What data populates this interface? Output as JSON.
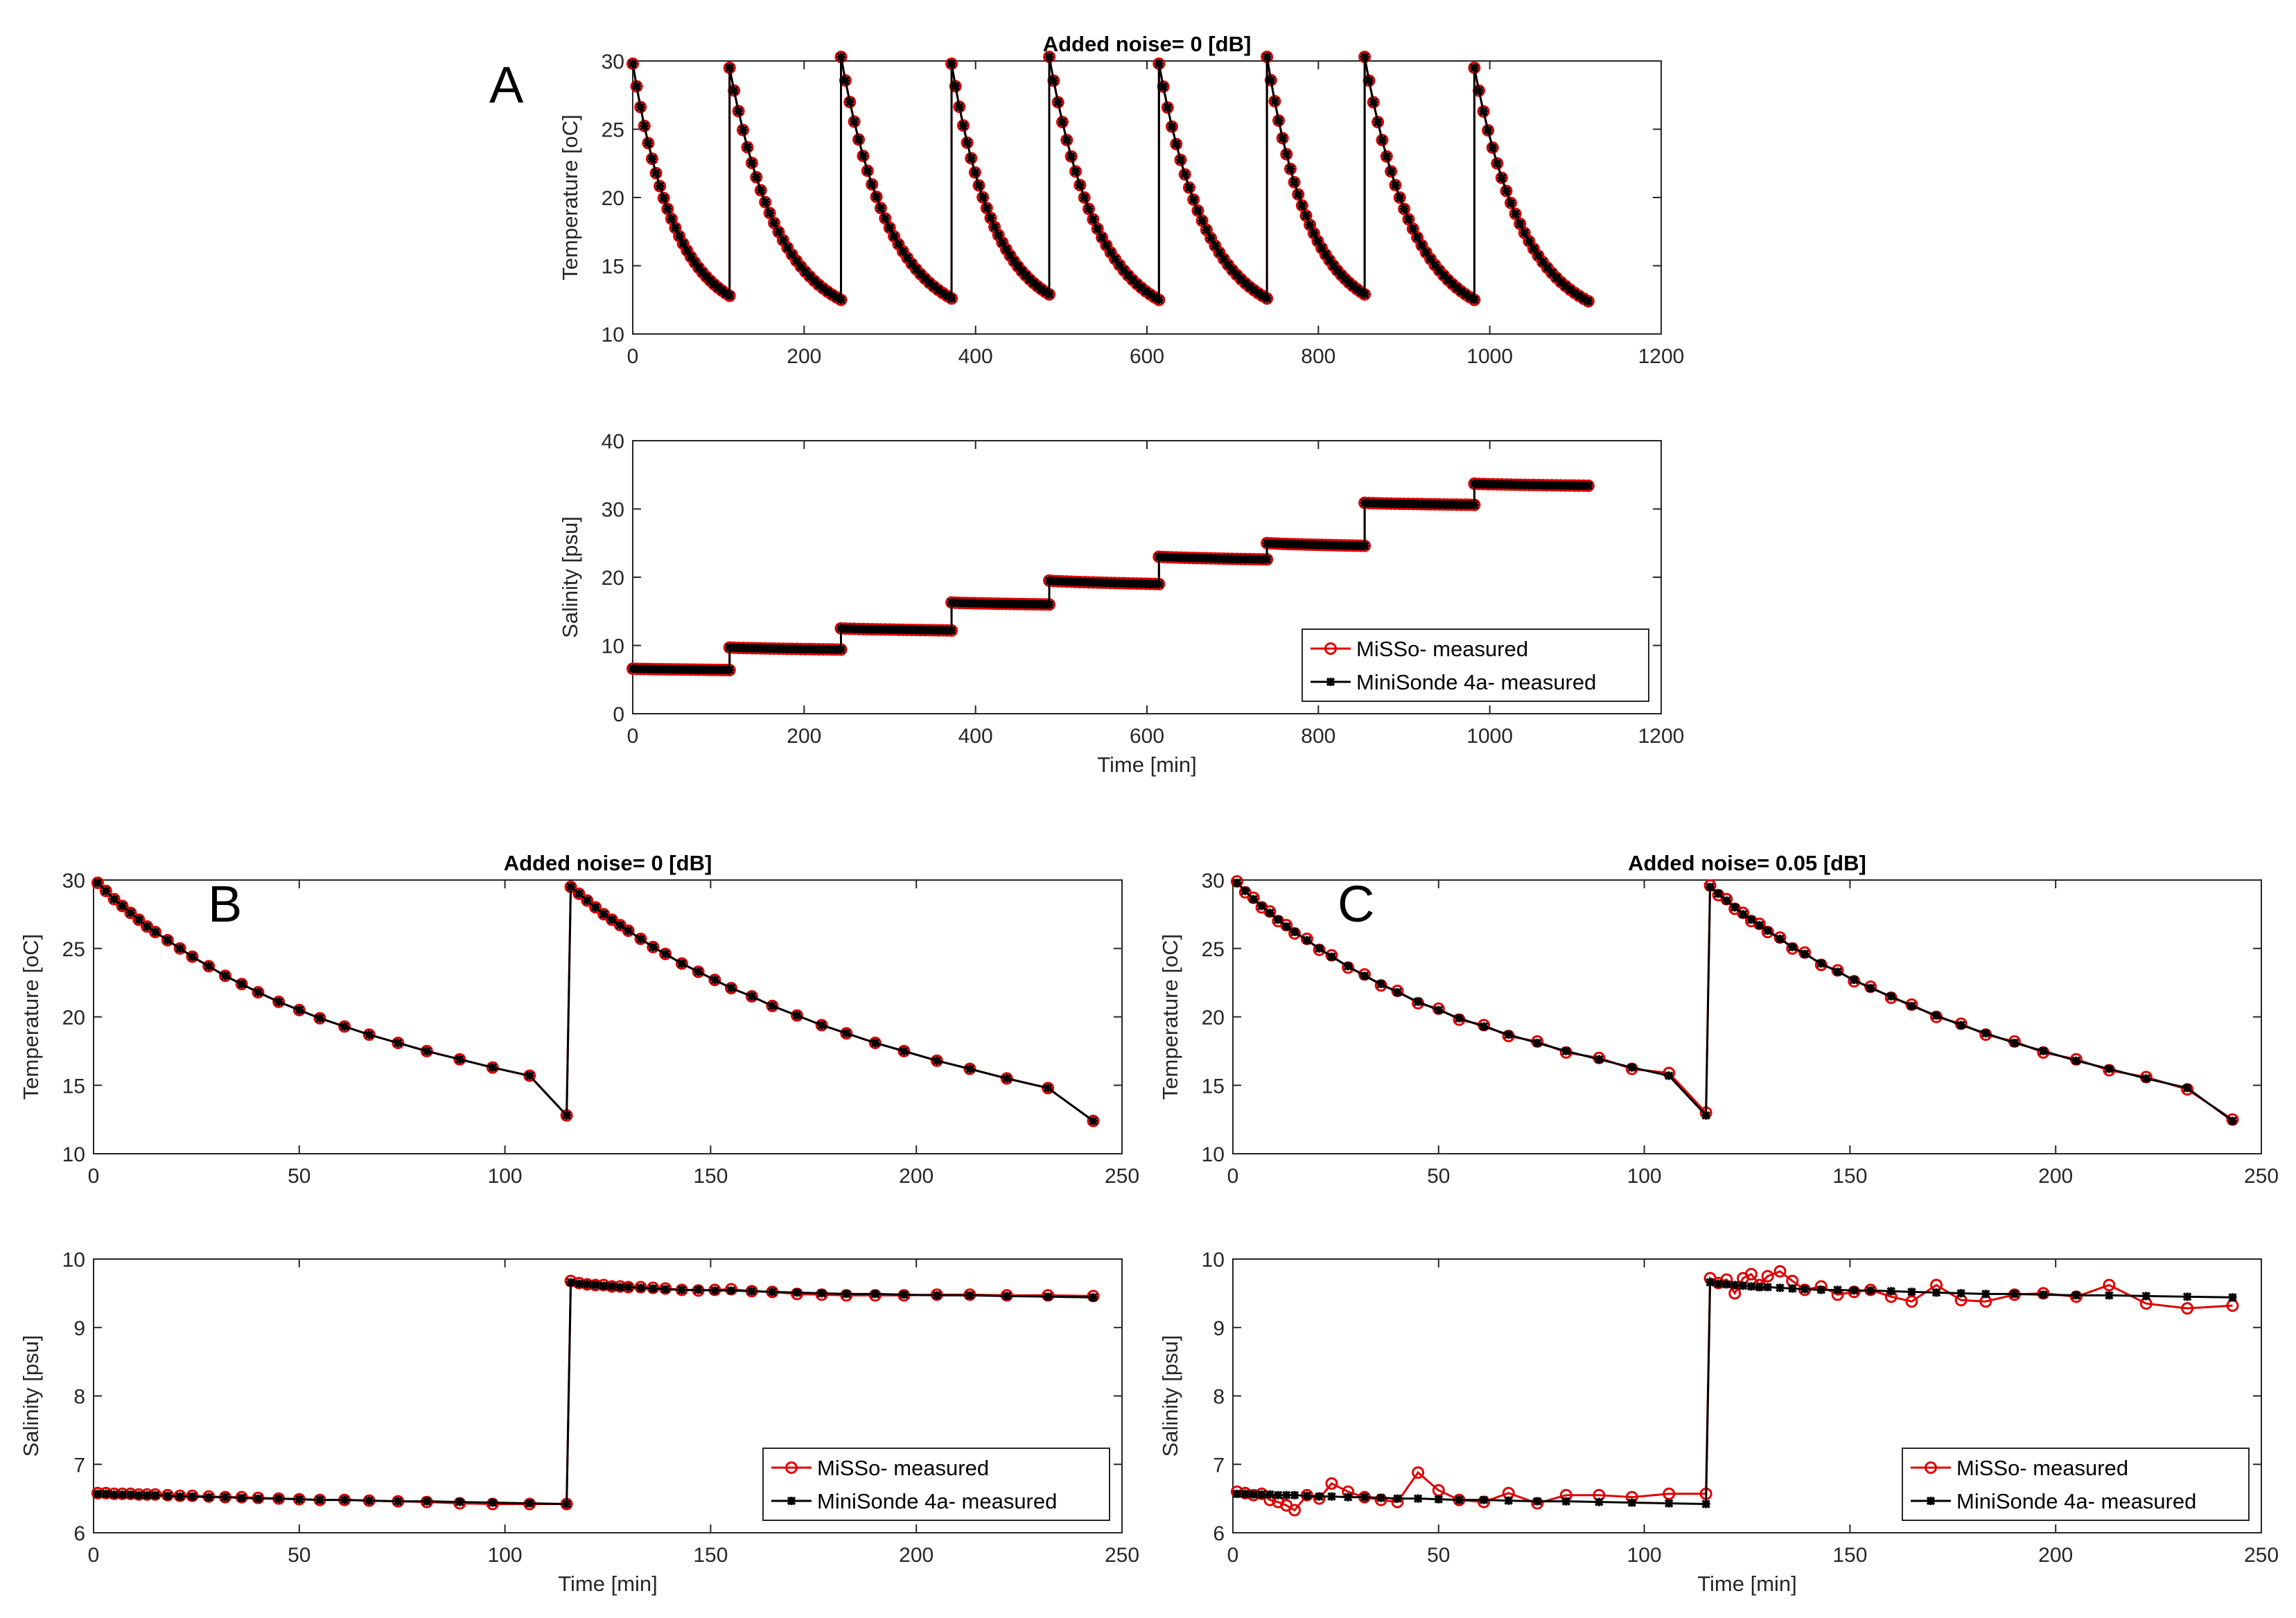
{
  "chart_data": [
    {
      "id": "A_temp",
      "panel_label": "A",
      "type": "line",
      "title": "Added noise= 0  [dB]",
      "ylabel": "Temperature [oC]",
      "xlabel": "",
      "xlim": [
        0,
        1200
      ],
      "ylim": [
        10,
        30
      ],
      "xticks": [
        0,
        200,
        400,
        600,
        800,
        1000,
        1200
      ],
      "yticks": [
        10,
        15,
        20,
        25,
        30
      ],
      "cycles": [
        {
          "start": 0,
          "end": 113,
          "t0": 29.8,
          "t1": 12.8
        },
        {
          "start": 113,
          "end": 243,
          "t0": 29.5,
          "t1": 12.5
        },
        {
          "start": 243,
          "end": 372,
          "t0": 30.3,
          "t1": 12.6
        },
        {
          "start": 372,
          "end": 486,
          "t0": 29.8,
          "t1": 12.9
        },
        {
          "start": 486,
          "end": 614,
          "t0": 30.3,
          "t1": 12.5
        },
        {
          "start": 614,
          "end": 740,
          "t0": 29.8,
          "t1": 12.6
        },
        {
          "start": 740,
          "end": 854,
          "t0": 30.3,
          "t1": 12.9
        },
        {
          "start": 854,
          "end": 982,
          "t0": 30.3,
          "t1": 12.5
        },
        {
          "start": 982,
          "end": 1115,
          "t0": 29.5,
          "t1": 12.4
        }
      ],
      "series": [
        {
          "name": "MiSSo- measured",
          "noise": 0
        },
        {
          "name": "MiniSonde 4a- measured",
          "noise": 0
        }
      ]
    },
    {
      "id": "A_sal",
      "type": "line",
      "ylabel": "Salinity [psu]",
      "xlabel": "Time [min]",
      "xlim": [
        0,
        1200
      ],
      "ylim": [
        0,
        40
      ],
      "xticks": [
        0,
        200,
        400,
        600,
        800,
        1000,
        1200
      ],
      "yticks": [
        0,
        10,
        20,
        30,
        40
      ],
      "cycles": [
        {
          "start": 0,
          "end": 113,
          "s0": 6.6,
          "s1": 6.4
        },
        {
          "start": 113,
          "end": 243,
          "s0": 9.7,
          "s1": 9.4
        },
        {
          "start": 243,
          "end": 372,
          "s0": 12.5,
          "s1": 12.2
        },
        {
          "start": 372,
          "end": 486,
          "s0": 16.3,
          "s1": 16.0
        },
        {
          "start": 486,
          "end": 614,
          "s0": 19.5,
          "s1": 19.0
        },
        {
          "start": 614,
          "end": 740,
          "s0": 23.0,
          "s1": 22.6
        },
        {
          "start": 740,
          "end": 854,
          "s0": 25.0,
          "s1": 24.6
        },
        {
          "start": 854,
          "end": 982,
          "s0": 30.9,
          "s1": 30.6
        },
        {
          "start": 982,
          "end": 1115,
          "s0": 33.7,
          "s1": 33.4
        }
      ],
      "legend": {
        "location": "bottom-right",
        "entries": [
          "MiSSo- measured",
          "MiniSonde 4a- measured"
        ]
      }
    },
    {
      "id": "B_temp",
      "panel_label": "B",
      "type": "line",
      "title": "Added noise= 0  [dB]",
      "ylabel": "Temperature [oC]",
      "xlabel": "",
      "xlim": [
        0,
        250
      ],
      "ylim": [
        10,
        30
      ],
      "xticks": [
        0,
        50,
        100,
        150,
        200,
        250
      ],
      "yticks": [
        10,
        15,
        20,
        25,
        30
      ],
      "x": [
        1,
        3,
        5,
        7,
        9,
        11,
        13,
        15,
        18,
        21,
        24,
        28,
        32,
        36,
        40,
        45,
        50,
        55,
        61,
        67,
        74,
        81,
        89,
        97,
        106,
        115,
        116,
        118,
        120,
        122,
        124,
        126,
        128,
        130,
        133,
        136,
        139,
        143,
        147,
        151,
        155,
        160,
        165,
        171,
        177,
        183,
        190,
        197,
        205,
        213,
        222,
        232,
        243
      ],
      "misso": [
        29.8,
        29.2,
        28.6,
        28.1,
        27.6,
        27.1,
        26.6,
        26.2,
        25.6,
        25.0,
        24.4,
        23.7,
        23.0,
        22.4,
        21.8,
        21.1,
        20.5,
        19.9,
        19.3,
        18.7,
        18.1,
        17.5,
        16.9,
        16.3,
        15.7,
        12.8,
        29.5,
        29.0,
        28.5,
        28.0,
        27.5,
        27.1,
        26.7,
        26.3,
        25.7,
        25.1,
        24.6,
        23.9,
        23.3,
        22.7,
        22.1,
        21.5,
        20.8,
        20.1,
        19.4,
        18.8,
        18.1,
        17.5,
        16.8,
        16.2,
        15.5,
        14.8,
        12.4
      ],
      "minisonde": [
        29.8,
        29.2,
        28.6,
        28.1,
        27.6,
        27.1,
        26.6,
        26.2,
        25.6,
        25.0,
        24.4,
        23.7,
        23.0,
        22.4,
        21.8,
        21.1,
        20.5,
        19.9,
        19.3,
        18.7,
        18.1,
        17.5,
        16.9,
        16.3,
        15.7,
        12.8,
        29.5,
        29.0,
        28.5,
        28.0,
        27.5,
        27.1,
        26.7,
        26.3,
        25.7,
        25.1,
        24.6,
        23.9,
        23.3,
        22.7,
        22.1,
        21.5,
        20.8,
        20.1,
        19.4,
        18.8,
        18.1,
        17.5,
        16.8,
        16.2,
        15.5,
        14.8,
        12.4
      ]
    },
    {
      "id": "B_sal",
      "type": "line",
      "ylabel": "Salinity [psu]",
      "xlabel": "Time [min]",
      "xlim": [
        0,
        250
      ],
      "ylim": [
        6,
        10
      ],
      "xticks": [
        0,
        50,
        100,
        150,
        200,
        250
      ],
      "yticks": [
        6,
        7,
        8,
        9,
        10
      ],
      "x": [
        1,
        3,
        5,
        7,
        9,
        11,
        13,
        15,
        18,
        21,
        24,
        28,
        32,
        36,
        40,
        45,
        50,
        55,
        61,
        67,
        74,
        81,
        89,
        97,
        106,
        115,
        116,
        118,
        120,
        122,
        124,
        126,
        128,
        130,
        133,
        136,
        139,
        143,
        147,
        151,
        155,
        160,
        165,
        171,
        177,
        183,
        190,
        197,
        205,
        213,
        222,
        232,
        243
      ],
      "misso": [
        6.58,
        6.58,
        6.57,
        6.57,
        6.57,
        6.56,
        6.56,
        6.56,
        6.55,
        6.54,
        6.54,
        6.53,
        6.52,
        6.52,
        6.51,
        6.5,
        6.49,
        6.48,
        6.48,
        6.47,
        6.46,
        6.45,
        6.43,
        6.42,
        6.42,
        6.42,
        9.68,
        9.65,
        9.63,
        9.62,
        9.62,
        9.6,
        9.6,
        9.59,
        9.59,
        9.58,
        9.57,
        9.55,
        9.54,
        9.55,
        9.56,
        9.53,
        9.52,
        9.49,
        9.48,
        9.47,
        9.47,
        9.47,
        9.48,
        9.48,
        9.47,
        9.47,
        9.46
      ],
      "minisonde": [
        6.57,
        6.57,
        6.56,
        6.56,
        6.56,
        6.55,
        6.55,
        6.55,
        6.54,
        6.53,
        6.53,
        6.52,
        6.52,
        6.51,
        6.5,
        6.5,
        6.49,
        6.48,
        6.48,
        6.47,
        6.46,
        6.46,
        6.45,
        6.44,
        6.43,
        6.42,
        9.66,
        9.64,
        9.63,
        9.62,
        9.61,
        9.6,
        9.59,
        9.59,
        9.58,
        9.57,
        9.56,
        9.55,
        9.55,
        9.54,
        9.54,
        9.53,
        9.52,
        9.51,
        9.5,
        9.49,
        9.49,
        9.48,
        9.47,
        9.47,
        9.46,
        9.45,
        9.44
      ],
      "legend": {
        "location": "bottom-right",
        "entries": [
          "MiSSo- measured",
          "MiniSonde 4a- measured"
        ]
      }
    },
    {
      "id": "C_temp",
      "panel_label": "C",
      "type": "line",
      "title": "Added noise= 0.05  [dB]",
      "ylabel": "Temperature [oC]",
      "xlabel": "",
      "xlim": [
        0,
        250
      ],
      "ylim": [
        10,
        30
      ],
      "xticks": [
        0,
        50,
        100,
        150,
        200,
        250
      ],
      "yticks": [
        10,
        15,
        20,
        25,
        30
      ],
      "x": [
        1,
        3,
        5,
        7,
        9,
        11,
        13,
        15,
        18,
        21,
        24,
        28,
        32,
        36,
        40,
        45,
        50,
        55,
        61,
        67,
        74,
        81,
        89,
        97,
        106,
        115,
        116,
        118,
        120,
        122,
        124,
        126,
        128,
        130,
        133,
        136,
        139,
        143,
        147,
        151,
        155,
        160,
        165,
        171,
        177,
        183,
        190,
        197,
        205,
        213,
        222,
        232,
        243
      ],
      "misso": [
        29.9,
        29.1,
        28.7,
        28.0,
        27.7,
        27.0,
        26.7,
        26.1,
        25.7,
        24.9,
        24.5,
        23.6,
        23.1,
        22.3,
        21.9,
        21.0,
        20.6,
        19.8,
        19.4,
        18.6,
        18.2,
        17.4,
        17.0,
        16.2,
        15.9,
        13.0,
        29.6,
        28.9,
        28.6,
        27.9,
        27.6,
        27.0,
        26.8,
        26.2,
        25.8,
        25.0,
        24.7,
        23.8,
        23.4,
        22.6,
        22.2,
        21.4,
        20.9,
        20.0,
        19.5,
        18.7,
        18.2,
        17.4,
        16.9,
        16.1,
        15.6,
        14.7,
        12.5
      ],
      "minisonde": [
        29.8,
        29.2,
        28.6,
        28.1,
        27.6,
        27.1,
        26.6,
        26.2,
        25.6,
        25.0,
        24.4,
        23.7,
        23.0,
        22.4,
        21.8,
        21.1,
        20.5,
        19.9,
        19.3,
        18.7,
        18.1,
        17.5,
        16.9,
        16.3,
        15.7,
        12.8,
        29.5,
        29.0,
        28.5,
        28.0,
        27.5,
        27.1,
        26.7,
        26.3,
        25.7,
        25.1,
        24.6,
        23.9,
        23.3,
        22.7,
        22.1,
        21.5,
        20.8,
        20.1,
        19.4,
        18.8,
        18.1,
        17.5,
        16.8,
        16.2,
        15.5,
        14.8,
        12.4
      ]
    },
    {
      "id": "C_sal",
      "type": "line",
      "ylabel": "Salinity [psu]",
      "xlabel": "Time [min]",
      "xlim": [
        0,
        250
      ],
      "ylim": [
        6,
        10
      ],
      "xticks": [
        0,
        50,
        100,
        150,
        200,
        250
      ],
      "yticks": [
        6,
        7,
        8,
        9,
        10
      ],
      "x": [
        1,
        3,
        5,
        7,
        9,
        11,
        13,
        15,
        18,
        21,
        24,
        28,
        32,
        36,
        40,
        45,
        50,
        55,
        61,
        67,
        74,
        81,
        89,
        97,
        106,
        115,
        116,
        118,
        120,
        122,
        124,
        126,
        128,
        130,
        133,
        136,
        139,
        143,
        147,
        151,
        155,
        160,
        165,
        171,
        177,
        183,
        190,
        197,
        205,
        213,
        222,
        232,
        243
      ],
      "misso": [
        6.6,
        6.58,
        6.55,
        6.57,
        6.48,
        6.45,
        6.4,
        6.33,
        6.55,
        6.5,
        6.72,
        6.6,
        6.52,
        6.48,
        6.45,
        6.88,
        6.62,
        6.48,
        6.45,
        6.58,
        6.43,
        6.55,
        6.55,
        6.52,
        6.57,
        6.57,
        9.72,
        9.65,
        9.7,
        9.5,
        9.72,
        9.78,
        9.62,
        9.75,
        9.82,
        9.68,
        9.55,
        9.6,
        9.48,
        9.52,
        9.55,
        9.45,
        9.38,
        9.62,
        9.4,
        9.38,
        9.48,
        9.5,
        9.45,
        9.62,
        9.35,
        9.28,
        9.32
      ],
      "minisonde": [
        6.57,
        6.57,
        6.56,
        6.56,
        6.56,
        6.55,
        6.55,
        6.55,
        6.54,
        6.53,
        6.53,
        6.52,
        6.52,
        6.51,
        6.5,
        6.5,
        6.49,
        6.48,
        6.48,
        6.47,
        6.46,
        6.46,
        6.45,
        6.44,
        6.43,
        6.42,
        9.66,
        9.64,
        9.63,
        9.62,
        9.61,
        9.6,
        9.59,
        9.59,
        9.58,
        9.57,
        9.56,
        9.55,
        9.55,
        9.54,
        9.54,
        9.53,
        9.52,
        9.51,
        9.5,
        9.49,
        9.49,
        9.48,
        9.47,
        9.47,
        9.46,
        9.45,
        9.44
      ],
      "legend": {
        "location": "bottom-right",
        "entries": [
          "MiSSo- measured",
          "MiniSonde 4a- measured"
        ]
      }
    }
  ],
  "colors": {
    "misso": "#e00000",
    "minisonde": "#000000",
    "axis": "#262626"
  }
}
